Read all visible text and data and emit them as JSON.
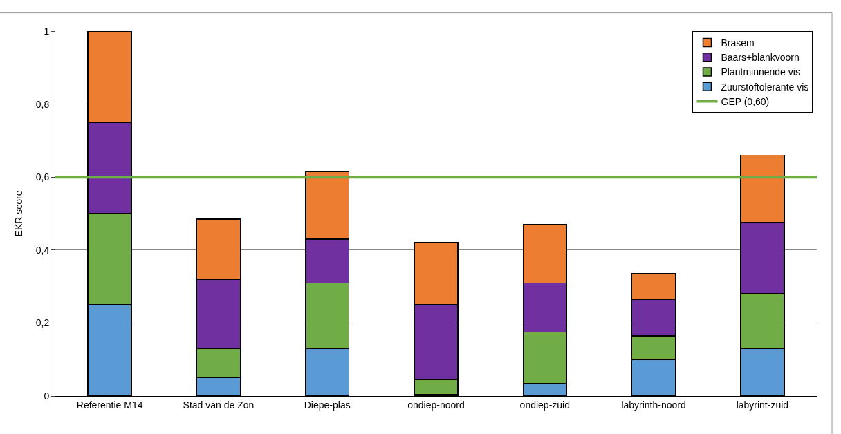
{
  "chart_data": {
    "type": "bar",
    "stacked": true,
    "ylabel": "EKR score",
    "categories": [
      "Referentie M14",
      "Stad van de Zon",
      "Diepe-plas",
      "ondiep-noord",
      "ondiep-zuid",
      "labyrinth-noord",
      "labyrint-zuid"
    ],
    "series": [
      {
        "name": "Zuurstoftolerante vis",
        "color": "#5b9bd5",
        "values": [
          0.25,
          0.05,
          0.13,
          0.005,
          0.035,
          0.1,
          0.13
        ]
      },
      {
        "name": "Plantminnende vis",
        "color": "#70ad47",
        "values": [
          0.25,
          0.08,
          0.18,
          0.04,
          0.14,
          0.065,
          0.15
        ]
      },
      {
        "name": "Baars+blankvoorn",
        "color": "#7030a0",
        "values": [
          0.25,
          0.19,
          0.12,
          0.205,
          0.135,
          0.1,
          0.195
        ]
      },
      {
        "name": "Brasem",
        "color": "#ed7d31",
        "values": [
          0.25,
          0.165,
          0.185,
          0.17,
          0.16,
          0.07,
          0.185
        ]
      }
    ],
    "ref_lines": [
      {
        "axis": "y",
        "value": 0.6,
        "label": "GEP (0,60)",
        "color": "#70ad47"
      }
    ],
    "ylim": [
      0,
      1
    ],
    "yticks": [
      {
        "value": 0,
        "label": "0"
      },
      {
        "value": 0.2,
        "label": "0,2"
      },
      {
        "value": 0.4,
        "label": "0,4"
      },
      {
        "value": 0.6,
        "label": "0,6"
      },
      {
        "value": 0.8,
        "label": "0,8"
      },
      {
        "value": 1,
        "label": "1"
      }
    ],
    "grid": "y",
    "legend": "top right"
  }
}
